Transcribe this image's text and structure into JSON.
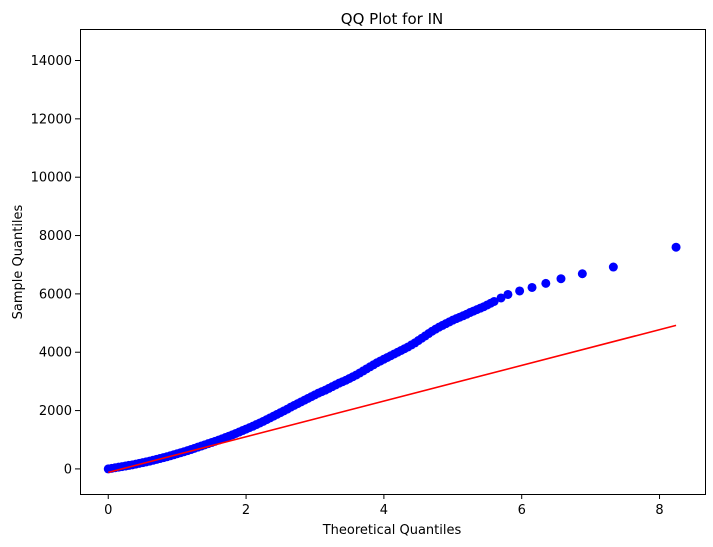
{
  "chart_data": {
    "type": "scatter",
    "title": "QQ Plot for IN",
    "xlabel": "Theoretical Quantiles",
    "ylabel": "Sample Quantiles",
    "xlim": [
      -0.41,
      8.66
    ],
    "ylim": [
      -860,
      15080
    ],
    "xticks": [
      0,
      2,
      4,
      6,
      8
    ],
    "yticks": [
      0,
      2000,
      4000,
      6000,
      8000,
      10000,
      12000,
      14000
    ],
    "grid": false,
    "colors": {
      "points": "#0000ff",
      "line": "#ff0000"
    },
    "series": [
      {
        "kind": "points",
        "x": [
          0.0,
          0.05,
          0.1,
          0.15,
          0.2,
          0.25,
          0.3,
          0.35,
          0.4,
          0.45,
          0.5,
          0.55,
          0.6,
          0.65,
          0.7,
          0.75,
          0.8,
          0.85,
          0.9,
          0.95,
          1.0,
          1.05,
          1.1,
          1.15,
          1.2,
          1.25,
          1.3,
          1.35,
          1.4,
          1.45,
          1.5,
          1.55,
          1.6,
          1.65,
          1.7,
          1.75,
          1.8,
          1.85,
          1.9,
          1.95,
          2.0,
          2.05,
          2.1,
          2.15,
          2.2,
          2.25,
          2.3,
          2.35,
          2.4,
          2.45,
          2.5,
          2.55,
          2.6,
          2.65,
          2.7,
          2.75,
          2.8,
          2.85,
          2.9,
          2.95,
          3.0,
          3.05,
          3.1,
          3.15,
          3.2,
          3.25,
          3.3,
          3.35,
          3.4,
          3.45,
          3.5,
          3.55,
          3.6,
          3.65,
          3.7,
          3.75,
          3.8,
          3.85,
          3.9,
          3.95,
          4.0,
          4.05,
          4.1,
          4.15,
          4.2,
          4.25,
          4.3,
          4.35,
          4.4,
          4.45,
          4.5,
          4.55,
          4.6,
          4.65,
          4.7,
          4.75,
          4.8,
          4.85,
          4.9,
          4.95,
          5.0,
          5.05,
          5.1,
          5.15,
          5.2,
          5.25,
          5.3,
          5.35,
          5.4,
          5.45,
          5.5,
          5.55,
          5.6,
          5.7,
          5.8,
          5.97,
          6.15,
          6.35,
          6.57,
          6.88,
          7.33,
          8.24
        ],
        "y": [
          0,
          20,
          40,
          60,
          80,
          100,
          120,
          140,
          165,
          190,
          215,
          240,
          265,
          295,
          325,
          355,
          385,
          415,
          450,
          485,
          520,
          555,
          590,
          625,
          665,
          705,
          745,
          785,
          825,
          865,
          905,
          945,
          985,
          1030,
          1075,
          1120,
          1165,
          1215,
          1265,
          1315,
          1365,
          1415,
          1465,
          1520,
          1575,
          1630,
          1690,
          1750,
          1810,
          1870,
          1930,
          1990,
          2050,
          2120,
          2180,
          2240,
          2300,
          2360,
          2420,
          2480,
          2540,
          2600,
          2650,
          2700,
          2760,
          2820,
          2880,
          2940,
          2990,
          3040,
          3100,
          3160,
          3220,
          3290,
          3360,
          3430,
          3500,
          3570,
          3640,
          3700,
          3760,
          3820,
          3880,
          3940,
          4000,
          4060,
          4120,
          4180,
          4250,
          4320,
          4400,
          4480,
          4560,
          4640,
          4720,
          4790,
          4860,
          4920,
          4980,
          5040,
          5100,
          5150,
          5200,
          5250,
          5300,
          5360,
          5410,
          5460,
          5510,
          5560,
          5620,
          5680,
          5740,
          5860,
          5980,
          6100,
          6220,
          6360,
          6520,
          6690,
          6920,
          7600
        ]
      },
      {
        "kind": "line",
        "x": [
          0.0,
          8.24
        ],
        "y": [
          -120,
          4920
        ]
      }
    ]
  }
}
